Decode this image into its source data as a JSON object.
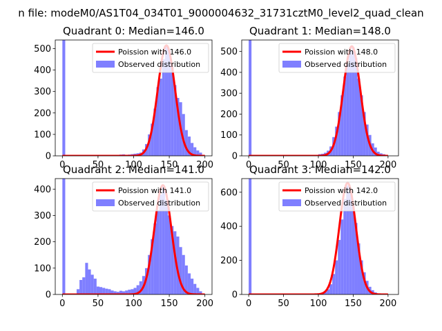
{
  "suptitle": "n file: modeM0/AS1T04_034T01_9000004632_31731cztM0_level2_quad_clean",
  "colors": {
    "hist": "#7f7fff",
    "poisson": "#ff0000",
    "axes": "#000000",
    "background": "#ffffff"
  },
  "legend_labels": {
    "poisson_prefix": "Poission with ",
    "observed": "Observed distribution"
  },
  "chart_data": [
    {
      "type": "bar",
      "title": "Quadrant 0: Median=146.0",
      "poisson_label": "Poission with 146.0",
      "hist_label": "Observed distribution",
      "xlim": [
        -10,
        210
      ],
      "ylim": [
        0,
        540
      ],
      "xticks": [
        0,
        50,
        100,
        150,
        200
      ],
      "yticks": [
        0,
        100,
        200,
        300,
        400,
        500
      ],
      "poisson_mean": 146.0,
      "poisson_peak": 515,
      "bin_width": 4,
      "bins": [
        {
          "x": 0,
          "y": 540
        },
        {
          "x": 80,
          "y": 6
        },
        {
          "x": 84,
          "y": 7
        },
        {
          "x": 88,
          "y": 5
        },
        {
          "x": 92,
          "y": 6
        },
        {
          "x": 96,
          "y": 8
        },
        {
          "x": 100,
          "y": 10
        },
        {
          "x": 104,
          "y": 12
        },
        {
          "x": 108,
          "y": 15
        },
        {
          "x": 112,
          "y": 30
        },
        {
          "x": 116,
          "y": 55
        },
        {
          "x": 120,
          "y": 100
        },
        {
          "x": 124,
          "y": 150
        },
        {
          "x": 128,
          "y": 220
        },
        {
          "x": 132,
          "y": 320
        },
        {
          "x": 136,
          "y": 360
        },
        {
          "x": 140,
          "y": 450
        },
        {
          "x": 144,
          "y": 510
        },
        {
          "x": 148,
          "y": 490
        },
        {
          "x": 152,
          "y": 420
        },
        {
          "x": 156,
          "y": 330
        },
        {
          "x": 160,
          "y": 270
        },
        {
          "x": 164,
          "y": 250
        },
        {
          "x": 168,
          "y": 195
        },
        {
          "x": 172,
          "y": 120
        },
        {
          "x": 176,
          "y": 90
        },
        {
          "x": 180,
          "y": 60
        },
        {
          "x": 184,
          "y": 40
        },
        {
          "x": 188,
          "y": 25
        },
        {
          "x": 192,
          "y": 15
        }
      ]
    },
    {
      "type": "bar",
      "title": "Quadrant 1: Median=148.0",
      "poisson_label": "Poission with 148.0",
      "hist_label": "Observed distribution",
      "xlim": [
        -10,
        215
      ],
      "ylim": [
        0,
        555
      ],
      "xticks": [
        0,
        50,
        100,
        150,
        200
      ],
      "yticks": [
        0,
        100,
        200,
        300,
        400,
        500
      ],
      "poisson_mean": 148.0,
      "poisson_peak": 525,
      "bin_width": 4,
      "bins": [
        {
          "x": 0,
          "y": 555
        },
        {
          "x": 96,
          "y": 5
        },
        {
          "x": 100,
          "y": 8
        },
        {
          "x": 104,
          "y": 10
        },
        {
          "x": 108,
          "y": 15
        },
        {
          "x": 112,
          "y": 25
        },
        {
          "x": 116,
          "y": 45
        },
        {
          "x": 120,
          "y": 90
        },
        {
          "x": 124,
          "y": 140
        },
        {
          "x": 128,
          "y": 210
        },
        {
          "x": 132,
          "y": 290
        },
        {
          "x": 136,
          "y": 380
        },
        {
          "x": 140,
          "y": 440
        },
        {
          "x": 144,
          "y": 500
        },
        {
          "x": 148,
          "y": 520
        },
        {
          "x": 152,
          "y": 470
        },
        {
          "x": 156,
          "y": 370
        },
        {
          "x": 160,
          "y": 290
        },
        {
          "x": 164,
          "y": 210
        },
        {
          "x": 168,
          "y": 150
        },
        {
          "x": 172,
          "y": 100
        },
        {
          "x": 176,
          "y": 60
        },
        {
          "x": 180,
          "y": 40
        },
        {
          "x": 184,
          "y": 20
        },
        {
          "x": 188,
          "y": 12
        },
        {
          "x": 192,
          "y": 8
        }
      ]
    },
    {
      "type": "bar",
      "title": "Quadrant 2: Median=141.0",
      "poisson_label": "Poission with 141.0",
      "hist_label": "Observed distribution",
      "xlim": [
        -10,
        210
      ],
      "ylim": [
        0,
        440
      ],
      "xticks": [
        0,
        50,
        100,
        150,
        200
      ],
      "yticks": [
        0,
        100,
        200,
        300,
        400
      ],
      "poisson_mean": 141.0,
      "poisson_peak": 415,
      "bin_width": 4,
      "bins": [
        {
          "x": 0,
          "y": 440
        },
        {
          "x": 20,
          "y": 20
        },
        {
          "x": 24,
          "y": 55
        },
        {
          "x": 28,
          "y": 65
        },
        {
          "x": 32,
          "y": 120
        },
        {
          "x": 36,
          "y": 95
        },
        {
          "x": 40,
          "y": 75
        },
        {
          "x": 44,
          "y": 60
        },
        {
          "x": 48,
          "y": 30
        },
        {
          "x": 52,
          "y": 28
        },
        {
          "x": 56,
          "y": 25
        },
        {
          "x": 60,
          "y": 22
        },
        {
          "x": 64,
          "y": 20
        },
        {
          "x": 68,
          "y": 15
        },
        {
          "x": 72,
          "y": 12
        },
        {
          "x": 76,
          "y": 10
        },
        {
          "x": 80,
          "y": 14
        },
        {
          "x": 84,
          "y": 12
        },
        {
          "x": 88,
          "y": 15
        },
        {
          "x": 92,
          "y": 18
        },
        {
          "x": 96,
          "y": 20
        },
        {
          "x": 100,
          "y": 25
        },
        {
          "x": 104,
          "y": 35
        },
        {
          "x": 108,
          "y": 50
        },
        {
          "x": 112,
          "y": 70
        },
        {
          "x": 116,
          "y": 100
        },
        {
          "x": 120,
          "y": 150
        },
        {
          "x": 124,
          "y": 210
        },
        {
          "x": 128,
          "y": 270
        },
        {
          "x": 132,
          "y": 320
        },
        {
          "x": 136,
          "y": 380
        },
        {
          "x": 140,
          "y": 410
        },
        {
          "x": 144,
          "y": 360
        },
        {
          "x": 148,
          "y": 300
        },
        {
          "x": 152,
          "y": 260
        },
        {
          "x": 156,
          "y": 240
        },
        {
          "x": 160,
          "y": 220
        },
        {
          "x": 164,
          "y": 180
        },
        {
          "x": 168,
          "y": 150
        },
        {
          "x": 172,
          "y": 110
        },
        {
          "x": 176,
          "y": 80
        },
        {
          "x": 180,
          "y": 60
        },
        {
          "x": 184,
          "y": 40
        },
        {
          "x": 188,
          "y": 25
        },
        {
          "x": 192,
          "y": 12
        }
      ]
    },
    {
      "type": "bar",
      "title": "Quadrant 3: Median=142.0",
      "poisson_label": "Poission with 142.0",
      "hist_label": "Observed distribution",
      "xlim": [
        -10,
        215
      ],
      "ylim": [
        0,
        680
      ],
      "xticks": [
        0,
        50,
        100,
        150,
        200
      ],
      "yticks": [
        0,
        200,
        400,
        600
      ],
      "poisson_mean": 142.0,
      "poisson_peak": 655,
      "bin_width": 4,
      "bins": [
        {
          "x": 0,
          "y": 680
        },
        {
          "x": 100,
          "y": 5
        },
        {
          "x": 104,
          "y": 8
        },
        {
          "x": 108,
          "y": 15
        },
        {
          "x": 112,
          "y": 30
        },
        {
          "x": 116,
          "y": 60
        },
        {
          "x": 120,
          "y": 120
        },
        {
          "x": 124,
          "y": 200
        },
        {
          "x": 128,
          "y": 320
        },
        {
          "x": 132,
          "y": 440
        },
        {
          "x": 136,
          "y": 560
        },
        {
          "x": 140,
          "y": 640
        },
        {
          "x": 144,
          "y": 600
        },
        {
          "x": 148,
          "y": 530
        },
        {
          "x": 152,
          "y": 420
        },
        {
          "x": 156,
          "y": 300
        },
        {
          "x": 160,
          "y": 200
        },
        {
          "x": 164,
          "y": 130
        },
        {
          "x": 168,
          "y": 80
        },
        {
          "x": 172,
          "y": 45
        },
        {
          "x": 176,
          "y": 25
        },
        {
          "x": 180,
          "y": 12
        },
        {
          "x": 184,
          "y": 6
        }
      ]
    }
  ]
}
